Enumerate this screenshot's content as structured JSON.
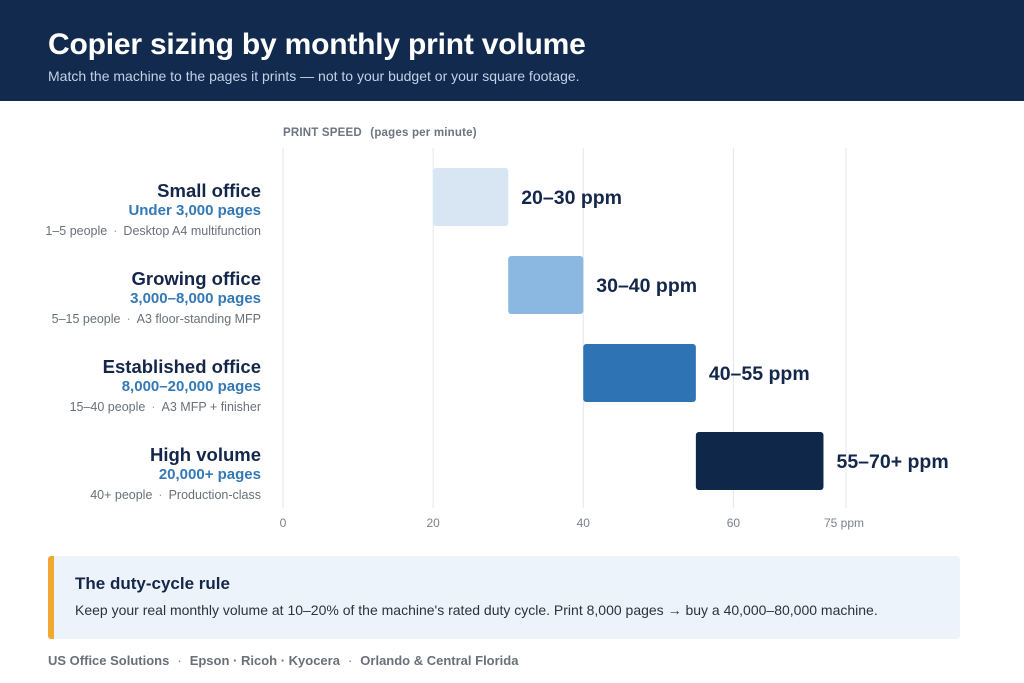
{
  "header": {
    "title": "Copier sizing by monthly print volume",
    "subtitle": "Match the machine to the pages it prints — not to your budget or your square footage."
  },
  "colors": {
    "header_bg": "#112a4d",
    "accent": "#f0a830",
    "callout_bg": "#edf3fa",
    "gridline": "#e3e6ea"
  },
  "chart_data": {
    "type": "bar",
    "orientation": "horizontal-range",
    "axis_caption": "PRINT SPEED",
    "axis_caption_unit": "(pages per minute)",
    "xlim": [
      0,
      75
    ],
    "x_ticks": [
      {
        "value": 0,
        "label": "0"
      },
      {
        "value": 20,
        "label": "20"
      },
      {
        "value": 40,
        "label": "40"
      },
      {
        "value": 60,
        "label": "60"
      },
      {
        "value": 75,
        "label": "75 ppm"
      }
    ],
    "grid": true,
    "categories": [
      "Small office",
      "Growing office",
      "Established office",
      "High volume"
    ],
    "rows": [
      {
        "name": "Small office",
        "volume": "Under 3,000 pages",
        "people": "1–5 people",
        "machine": "Desktop A4 multifunction",
        "start": 20,
        "end": 30,
        "label": "20–30 ppm",
        "color": "#d8e6f3"
      },
      {
        "name": "Growing office",
        "volume": "3,000–8,000 pages",
        "people": "5–15 people",
        "machine": "A3 floor-standing MFP",
        "start": 30,
        "end": 40,
        "label": "30–40 ppm",
        "color": "#8ab8e1"
      },
      {
        "name": "Established office",
        "volume": "8,000–20,000 pages",
        "people": "15–40 people",
        "machine": "A3 MFP + finisher",
        "start": 40,
        "end": 55,
        "label": "40–55 ppm",
        "color": "#2e74b5"
      },
      {
        "name": "High volume",
        "volume": "20,000+ pages",
        "people": "40+ people",
        "machine": "Production-class",
        "start": 55,
        "end": 72,
        "label": "55–70+ ppm",
        "color": "#0f2748"
      }
    ]
  },
  "callout": {
    "title": "The duty-cycle rule",
    "body": "Keep your real monthly volume at 10–20% of the machine's rated duty cycle. Print 8,000 pages → buy a 40,000–80,000 machine."
  },
  "footer": {
    "company": "US Office Solutions",
    "brands": "Epson · Ricoh · Kyocera",
    "region": "Orlando & Central Florida"
  }
}
